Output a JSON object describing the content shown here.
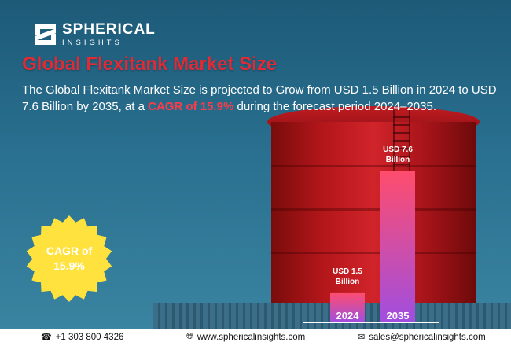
{
  "logo": {
    "name": "SPHERICAL",
    "sub": "INSIGHTS"
  },
  "title": "Global Flexitank Market Size",
  "description": {
    "part1": "The Global Flexitank Market Size is projected to Grow from USD 1.5 Billion in 2024 to USD 7.6 Billion by 2035, at a ",
    "highlight": "CAGR of 15.9%",
    "part2": " during the forecast period 2024–2035."
  },
  "badge": {
    "line1": "CAGR of",
    "line2": "15.9%"
  },
  "chart_data": {
    "type": "bar",
    "categories": [
      "2024",
      "2035"
    ],
    "values": [
      1.5,
      7.6
    ],
    "value_labels": [
      [
        "USD 1.5",
        "Billion"
      ],
      [
        "USD 7.6",
        "Billion"
      ]
    ],
    "unit": "USD Billion",
    "colors": {
      "bar_top": "#ff4d6d",
      "bar_bottom": "#a04ee0"
    }
  },
  "footer": {
    "phone": "+1 303 800 4326",
    "website": "www.sphericalinsights.com",
    "email": "sales@sphericalinsights.com"
  },
  "colors": {
    "title": "#e02a36",
    "highlight": "#ff3b47",
    "badge": "#ffe23d"
  }
}
